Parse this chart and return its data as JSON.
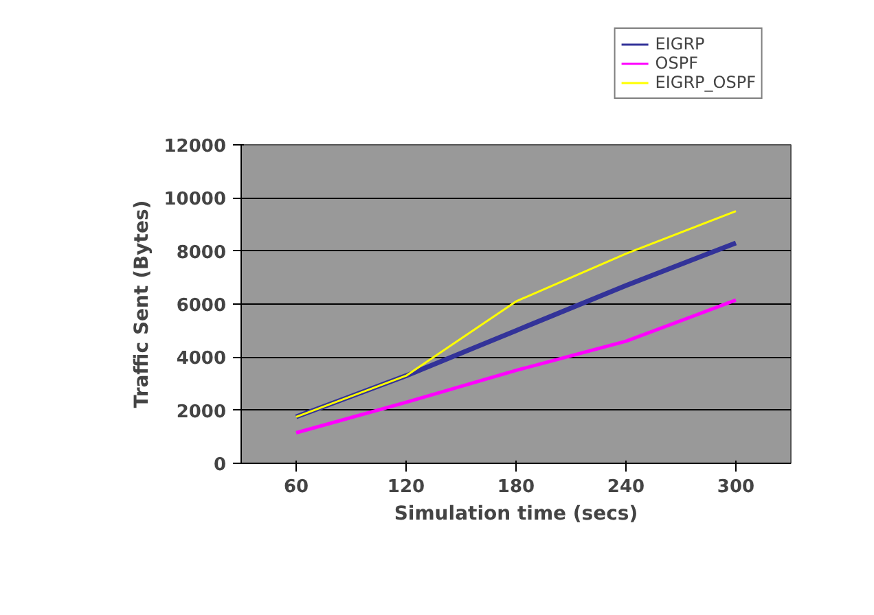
{
  "chart_data": {
    "type": "line",
    "xlabel": "Simulation time (secs)",
    "ylabel": "Traffic Sent (Bytes)",
    "categories": [
      "60",
      "120",
      "180",
      "240",
      "300"
    ],
    "series": [
      {
        "name": "EIGRP",
        "color": "#333399",
        "values": [
          1750,
          3300,
          5000,
          6700,
          8300
        ]
      },
      {
        "name": "OSPF",
        "color": "#ff00ff",
        "values": [
          1150,
          2300,
          3500,
          4600,
          6150
        ]
      },
      {
        "name": "EIGRP_OSPF",
        "color": "#ffff00",
        "values": [
          1750,
          3300,
          6100,
          7900,
          9500
        ]
      }
    ],
    "ylim": [
      0,
      12000
    ],
    "yticks": [
      0,
      2000,
      4000,
      6000,
      8000,
      10000,
      12000
    ],
    "grid": "y",
    "legend": "top right",
    "marker": "none",
    "line_style": "solid"
  }
}
